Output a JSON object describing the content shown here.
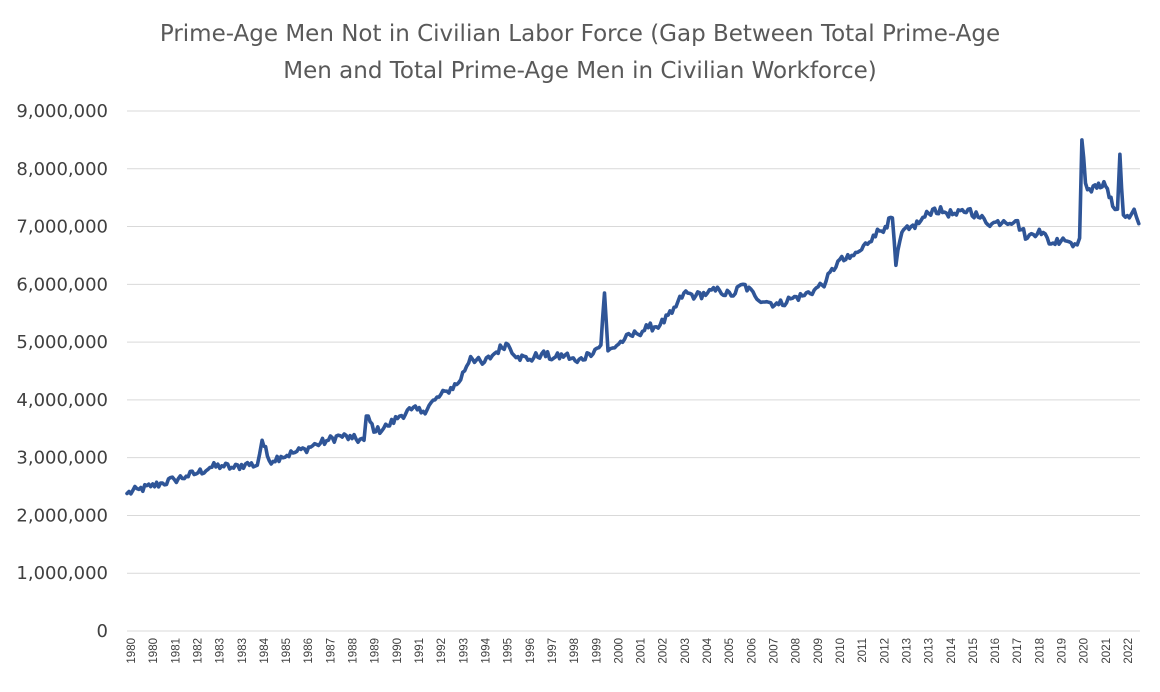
{
  "chart_data": {
    "type": "line",
    "title": "Prime-Age Men Not in Civilian Labor Force (Gap Between Total Prime-Age Men and Total Prime-Age Men in Civilian Workforce)",
    "title_lines": [
      "Prime-Age Men Not in Civilian Labor Force (Gap Between Total Prime-Age",
      "Men and Total Prime-Age Men in Civilian Workforce)"
    ],
    "xlabel": "",
    "ylabel": "",
    "ylim": [
      0,
      9000000
    ],
    "yticks": [
      "0",
      "1,000,000",
      "2,000,000",
      "3,000,000",
      "4,000,000",
      "5,000,000",
      "6,000,000",
      "7,000,000",
      "8,000,000",
      "9,000,000"
    ],
    "xticks": [
      "1980",
      "1980",
      "1981",
      "1982",
      "1983",
      "1983",
      "1984",
      "1985",
      "1986",
      "1987",
      "1988",
      "1989",
      "1990",
      "1991",
      "1992",
      "1993",
      "1994",
      "1995",
      "1996",
      "1997",
      "1998",
      "1999",
      "2000",
      "2001",
      "2002",
      "2003",
      "2004",
      "2005",
      "2006",
      "2007",
      "2008",
      "2009",
      "2010",
      "2011",
      "2012",
      "2013",
      "2013",
      "2014",
      "2015",
      "2016",
      "2017",
      "2018",
      "2019",
      "2020",
      "2021",
      "2022"
    ],
    "grid": "horizontal",
    "legend": "none",
    "line_color": "#2F5597",
    "series": [
      {
        "values": [
          [
            1980.0,
            2380000
          ],
          [
            1980.5,
            2450000
          ],
          [
            1981.0,
            2500000
          ],
          [
            1981.5,
            2560000
          ],
          [
            1982.0,
            2620000
          ],
          [
            1982.5,
            2680000
          ],
          [
            1983.0,
            2740000
          ],
          [
            1983.5,
            2830000
          ],
          [
            1984.0,
            2860000
          ],
          [
            1984.5,
            2820000
          ],
          [
            1985.0,
            2890000
          ],
          [
            1985.5,
            2870000
          ],
          [
            1985.7,
            3300000
          ],
          [
            1986.0,
            2950000
          ],
          [
            1986.5,
            3020000
          ],
          [
            1987.0,
            3080000
          ],
          [
            1987.5,
            3150000
          ],
          [
            1988.0,
            3230000
          ],
          [
            1988.5,
            3300000
          ],
          [
            1989.0,
            3380000
          ],
          [
            1989.5,
            3330000
          ],
          [
            1990.0,
            3300000
          ],
          [
            1990.1,
            3720000
          ],
          [
            1990.5,
            3450000
          ],
          [
            1991.0,
            3550000
          ],
          [
            1991.5,
            3720000
          ],
          [
            1992.0,
            3830000
          ],
          [
            1992.5,
            3800000
          ],
          [
            1993.0,
            4000000
          ],
          [
            1993.5,
            4150000
          ],
          [
            1994.0,
            4300000
          ],
          [
            1994.5,
            4750000
          ],
          [
            1995.0,
            4620000
          ],
          [
            1995.5,
            4800000
          ],
          [
            1996.0,
            4980000
          ],
          [
            1996.5,
            4750000
          ],
          [
            1997.0,
            4700000
          ],
          [
            1997.5,
            4800000
          ],
          [
            1998.0,
            4720000
          ],
          [
            1998.5,
            4780000
          ],
          [
            1999.0,
            4650000
          ],
          [
            1999.5,
            4800000
          ],
          [
            2000.0,
            4950000
          ],
          [
            2000.15,
            5850000
          ],
          [
            2000.3,
            4850000
          ],
          [
            2000.5,
            4900000
          ],
          [
            2001.0,
            5050000
          ],
          [
            2001.5,
            5150000
          ],
          [
            2002.0,
            5250000
          ],
          [
            2002.5,
            5300000
          ],
          [
            2003.0,
            5500000
          ],
          [
            2003.5,
            5850000
          ],
          [
            2004.0,
            5800000
          ],
          [
            2004.5,
            5850000
          ],
          [
            2005.0,
            5900000
          ],
          [
            2005.5,
            5800000
          ],
          [
            2006.0,
            6000000
          ],
          [
            2006.5,
            5800000
          ],
          [
            2007.0,
            5700000
          ],
          [
            2007.5,
            5650000
          ],
          [
            2008.0,
            5750000
          ],
          [
            2008.5,
            5800000
          ],
          [
            2009.0,
            5900000
          ],
          [
            2009.5,
            6050000
          ],
          [
            2010.0,
            6400000
          ],
          [
            2010.5,
            6450000
          ],
          [
            2011.0,
            6600000
          ],
          [
            2011.5,
            6850000
          ],
          [
            2012.0,
            7000000
          ],
          [
            2012.3,
            7150000
          ],
          [
            2012.45,
            6330000
          ],
          [
            2012.7,
            6900000
          ],
          [
            2013.0,
            6950000
          ],
          [
            2013.5,
            7100000
          ],
          [
            2014.0,
            7300000
          ],
          [
            2014.5,
            7250000
          ],
          [
            2015.0,
            7200000
          ],
          [
            2015.5,
            7300000
          ],
          [
            2016.0,
            7150000
          ],
          [
            2016.5,
            7050000
          ],
          [
            2017.0,
            7100000
          ],
          [
            2017.5,
            7100000
          ],
          [
            2018.0,
            6800000
          ],
          [
            2018.5,
            6950000
          ],
          [
            2019.0,
            6700000
          ],
          [
            2019.5,
            6800000
          ],
          [
            2020.0,
            6700000
          ],
          [
            2020.2,
            6800000
          ],
          [
            2020.3,
            8500000
          ],
          [
            2020.45,
            7750000
          ],
          [
            2020.7,
            7600000
          ],
          [
            2021.0,
            7750000
          ],
          [
            2021.3,
            7700000
          ],
          [
            2021.6,
            7350000
          ],
          [
            2021.8,
            7300000
          ],
          [
            2021.9,
            8250000
          ],
          [
            2022.05,
            7200000
          ],
          [
            2022.3,
            7150000
          ],
          [
            2022.5,
            7300000
          ],
          [
            2022.7,
            7050000
          ]
        ]
      }
    ]
  }
}
